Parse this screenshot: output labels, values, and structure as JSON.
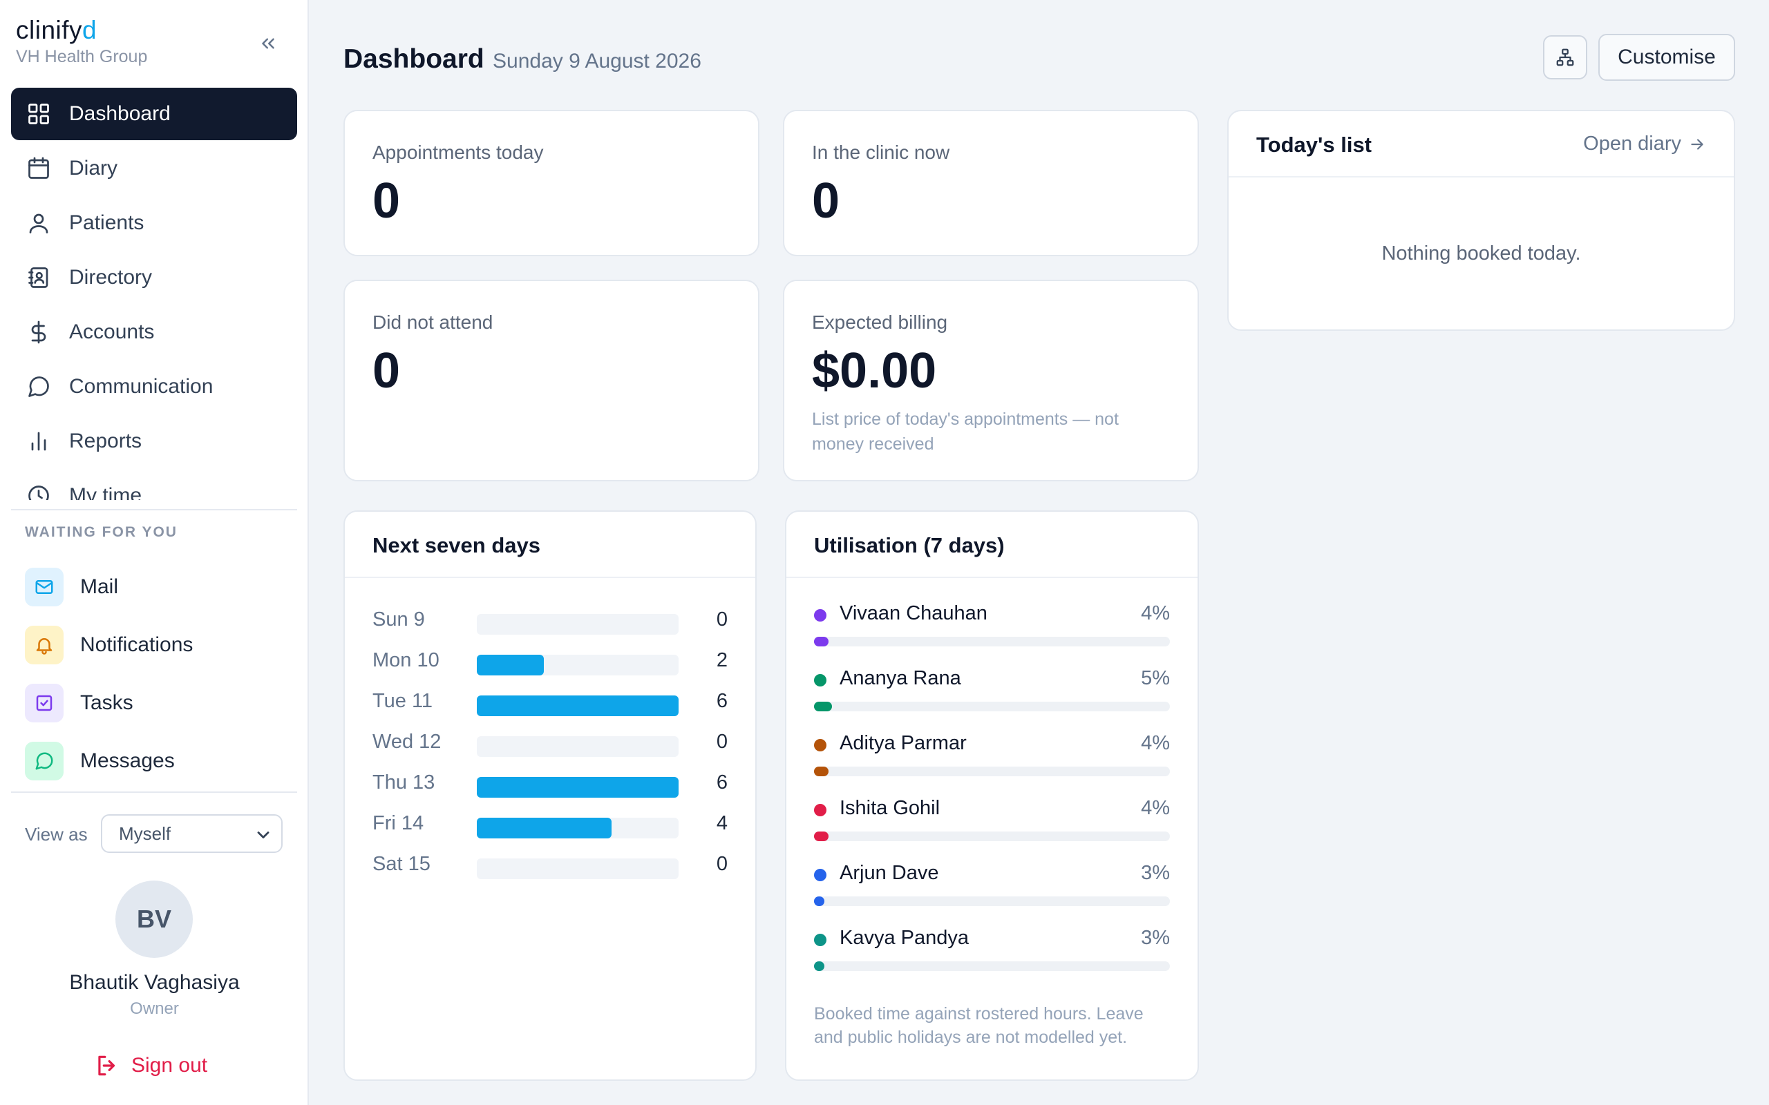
{
  "brand": {
    "name_prefix": "clinify",
    "name_suffix": "d",
    "org": "VH Health Group"
  },
  "nav": {
    "items": [
      {
        "label": "Dashboard",
        "icon": "grid-icon"
      },
      {
        "label": "Diary",
        "icon": "calendar-icon"
      },
      {
        "label": "Patients",
        "icon": "user-icon"
      },
      {
        "label": "Directory",
        "icon": "contact-book-icon"
      },
      {
        "label": "Accounts",
        "icon": "dollar-icon"
      },
      {
        "label": "Communication",
        "icon": "chat-bubble-icon"
      },
      {
        "label": "Reports",
        "icon": "bar-chart-icon"
      },
      {
        "label": "My time",
        "icon": "clock-icon"
      }
    ]
  },
  "waiting": {
    "title": "WAITING FOR YOU",
    "items": [
      {
        "label": "Mail",
        "icon": "mail-icon",
        "color": "#0ea5e9",
        "bg": "#e0f2fe"
      },
      {
        "label": "Notifications",
        "icon": "bell-icon",
        "color": "#d97706",
        "bg": "#fef3c7"
      },
      {
        "label": "Tasks",
        "icon": "checkbox-icon",
        "color": "#7c3aed",
        "bg": "#ede9fe"
      },
      {
        "label": "Messages",
        "icon": "message-icon",
        "color": "#10b981",
        "bg": "#d1fae5"
      }
    ]
  },
  "view_as": {
    "label": "View as",
    "selected": "Myself"
  },
  "user": {
    "initials": "BV",
    "name": "Bhautik Vaghasiya",
    "role": "Owner"
  },
  "signout": {
    "label": "Sign out"
  },
  "header": {
    "title": "Dashboard",
    "date": "Sunday 9 August 2026",
    "customise_label": "Customise"
  },
  "stats": {
    "appointments_today": {
      "label": "Appointments today",
      "value": "0"
    },
    "in_clinic": {
      "label": "In the clinic now",
      "value": "0"
    },
    "did_not_attend": {
      "label": "Did not attend",
      "value": "0"
    },
    "expected_billing": {
      "label": "Expected billing",
      "value": "$0.00",
      "note": "List price of today's appointments — not money received"
    }
  },
  "todays_list": {
    "title": "Today's list",
    "open_label": "Open diary",
    "empty": "Nothing booked today."
  },
  "next_seven": {
    "title": "Next seven days",
    "max": 6,
    "days": [
      {
        "label": "Sun 9",
        "count": 0
      },
      {
        "label": "Mon 10",
        "count": 2
      },
      {
        "label": "Tue 11",
        "count": 6
      },
      {
        "label": "Wed 12",
        "count": 0
      },
      {
        "label": "Thu 13",
        "count": 6
      },
      {
        "label": "Fri 14",
        "count": 4
      },
      {
        "label": "Sat 15",
        "count": 0
      }
    ]
  },
  "utilisation": {
    "title": "Utilisation (7 days)",
    "rows": [
      {
        "name": "Vivaan Chauhan",
        "pct": 4,
        "pct_label": "4%",
        "color": "#7c3aed"
      },
      {
        "name": "Ananya Rana",
        "pct": 5,
        "pct_label": "5%",
        "color": "#059669"
      },
      {
        "name": "Aditya Parmar",
        "pct": 4,
        "pct_label": "4%",
        "color": "#b45309"
      },
      {
        "name": "Ishita Gohil",
        "pct": 4,
        "pct_label": "4%",
        "color": "#e11d48"
      },
      {
        "name": "Arjun Dave",
        "pct": 3,
        "pct_label": "3%",
        "color": "#2563eb"
      },
      {
        "name": "Kavya Pandya",
        "pct": 3,
        "pct_label": "3%",
        "color": "#0d9488"
      }
    ],
    "note": "Booked time against rostered hours. Leave and public holidays are not modelled yet."
  }
}
